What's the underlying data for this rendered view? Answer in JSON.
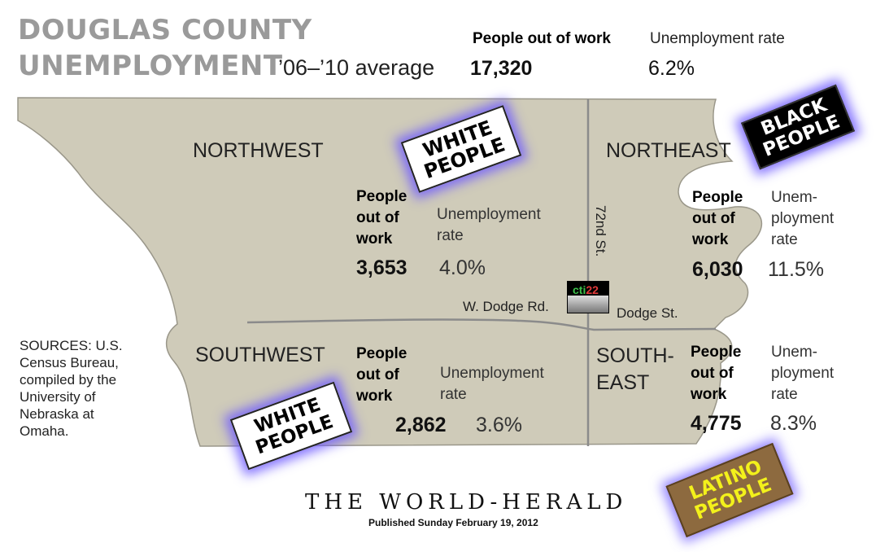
{
  "title": {
    "line1": "DOUGLAS COUNTY",
    "line2": "UNEMPLOYMENT",
    "subtitle": "’06–’10 average"
  },
  "county_total": {
    "people_label": "People out of work",
    "people_value": "17,320",
    "rate_label": "Unemployment rate",
    "rate_value": "6.2%"
  },
  "regions": {
    "northwest": {
      "name": "NORTHWEST",
      "people_label": [
        "People",
        "out of",
        "work"
      ],
      "rate_label": [
        "Unemployment",
        "rate"
      ],
      "people_value": "3,653",
      "rate_value": "4.0%"
    },
    "northeast": {
      "name": "NORTHEAST",
      "people_label": [
        "People",
        "out of",
        "work"
      ],
      "rate_label": [
        "Unem-",
        "ployment",
        "rate"
      ],
      "people_value": "6,030",
      "rate_value": "11.5%"
    },
    "southwest": {
      "name": "SOUTHWEST",
      "people_label": [
        "People",
        "out of",
        "work"
      ],
      "rate_label": [
        "Unemployment",
        "rate"
      ],
      "people_value": "2,862",
      "rate_value": "3.6%"
    },
    "southeast": {
      "name_line1": "SOUTH-",
      "name_line2": "EAST",
      "people_label": [
        "People",
        "out of",
        "work"
      ],
      "rate_label": [
        "Unem-",
        "ployment",
        "rate"
      ],
      "people_value": "4,775",
      "rate_value": "8.3%"
    }
  },
  "roads": {
    "street_72nd": "72nd St.",
    "w_dodge": "W. Dodge Rd.",
    "dodge": "Dodge St."
  },
  "sources": [
    "SOURCES: U.S.",
    "Census Bureau,",
    "compiled by the",
    "University of",
    "Nebraska at",
    "Omaha."
  ],
  "stickers": {
    "northwest": [
      "WHITE",
      "PEOPLE"
    ],
    "northeast": [
      "BLACK",
      "PEOPLE"
    ],
    "southwest": [
      "WHITE",
      "PEOPLE"
    ],
    "southeast": [
      "LATINO",
      "PEOPLE"
    ]
  },
  "logo": {
    "text_a": "cti",
    "text_b": "22"
  },
  "footer": {
    "masthead": "THE WORLD-HERALD",
    "published": "Published Sunday February 19, 2012"
  },
  "colors": {
    "map_fill": "#cfcbb9",
    "map_stroke": "#9a978a",
    "road": "#8b8b8b",
    "sticker_glow": "#6e5aff",
    "latino_bg": "#8d6a3f",
    "latino_text": "#f3f11b"
  }
}
